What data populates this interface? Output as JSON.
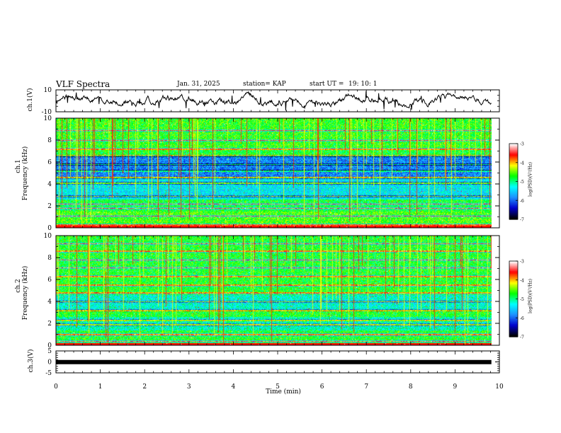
{
  "header": {
    "title": "VLF Spectra",
    "date": "Jan. 31, 2025",
    "station": "station= KAP",
    "start_label": "start UT =",
    "start_time": "19: 10: 1"
  },
  "colors": {
    "waveform": "#000000",
    "colormap": [
      "#000000",
      "#0000cc",
      "#1e90ff",
      "#00ffff",
      "#00ff00",
      "#ffff00",
      "#ff0000",
      "#ffffff"
    ]
  },
  "chart_data": [
    {
      "type": "line",
      "name": "ch1-waveform",
      "ylabel": "ch.1(V)",
      "ylim": [
        -10,
        10
      ],
      "yticks": [
        "10",
        "-10"
      ],
      "x_range_min": [
        0,
        9.82
      ],
      "description_series": "ch.1 voltage vs time"
    },
    {
      "type": "heatmap",
      "name": "ch1-spectrogram",
      "ylabel_top": "ch.1",
      "ylabel": "Frequency (kHz)",
      "ylim": [
        0,
        10
      ],
      "yticks": [
        "0",
        "2",
        "4",
        "6",
        "8",
        "10"
      ],
      "colorbar": {
        "label": "log(PSD)(V²/Hz)",
        "range": [
          -7,
          -3
        ],
        "ticks": [
          "-3",
          "-4",
          "-5",
          "-6",
          "-7"
        ]
      }
    },
    {
      "type": "heatmap",
      "name": "ch2-spectrogram",
      "ylabel_top": "ch.2",
      "ylabel": "Frequency (kHz)",
      "ylim": [
        0,
        10
      ],
      "yticks": [
        "0",
        "2",
        "4",
        "6",
        "8",
        "10"
      ],
      "colorbar": {
        "label": "log(PSD)(V²/Hz)",
        "range": [
          -7,
          -3
        ],
        "ticks": [
          "-3",
          "-4",
          "-5",
          "-6",
          "-7"
        ]
      }
    },
    {
      "type": "line",
      "name": "ch3-waveform",
      "ylabel": "ch.3(V)",
      "ylim": [
        -5,
        5
      ],
      "yticks": [
        "5",
        "0",
        "-5"
      ],
      "x_range_min": [
        0,
        9.82
      ],
      "level_v": -0.1
    }
  ],
  "xaxis": {
    "label": "Time (min)",
    "range": [
      0,
      10
    ],
    "ticks": [
      "0",
      "1",
      "2",
      "3",
      "4",
      "5",
      "6",
      "7",
      "8",
      "9",
      "10"
    ]
  }
}
